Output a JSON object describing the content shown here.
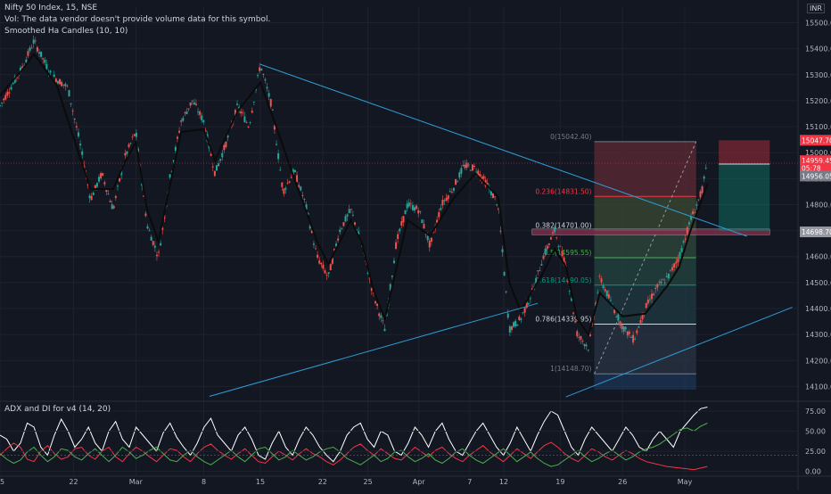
{
  "header": {
    "title": "Nifty 50 Index, 15, NSE",
    "vol_note": "Vol: The data vendor doesn't provide volume data for this symbol.",
    "indicator": "Smoothed Ha Candles (10, 10)",
    "currency": "INR"
  },
  "adx_label": "ADX and DI for v4 (14, 20)",
  "chart_data": [
    {
      "type": "candlestick",
      "title": "Nifty 50 Index, 15, NSE",
      "x_ticks": [
        "15",
        "22",
        "Mar",
        "8",
        "15",
        "22",
        "25",
        "Apr",
        "7",
        "12",
        "19",
        "26",
        "May"
      ],
      "y_ticks": [
        15500,
        15400,
        15300,
        15200,
        15100,
        15000,
        14900,
        14800,
        14700,
        14600,
        14500,
        14400,
        14300,
        14200,
        14100
      ],
      "ylim": [
        14050,
        15560
      ],
      "price_path": [
        [
          0,
          15180
        ],
        [
          4,
          15330
        ],
        [
          6,
          15430
        ],
        [
          9,
          15300
        ],
        [
          12,
          15250
        ],
        [
          14,
          15050
        ],
        [
          16,
          14820
        ],
        [
          18,
          14920
        ],
        [
          20,
          14780
        ],
        [
          22,
          14980
        ],
        [
          24,
          15080
        ],
        [
          26,
          14720
        ],
        [
          28,
          14600
        ],
        [
          30,
          14900
        ],
        [
          32,
          15120
        ],
        [
          34,
          15200
        ],
        [
          36,
          15120
        ],
        [
          38,
          14920
        ],
        [
          40,
          15040
        ],
        [
          42,
          15180
        ],
        [
          44,
          15100
        ],
        [
          46,
          15340
        ],
        [
          48,
          15180
        ],
        [
          50,
          14850
        ],
        [
          52,
          14930
        ],
        [
          54,
          14800
        ],
        [
          56,
          14600
        ],
        [
          58,
          14520
        ],
        [
          60,
          14700
        ],
        [
          62,
          14780
        ],
        [
          64,
          14640
        ],
        [
          66,
          14450
        ],
        [
          68,
          14320
        ],
        [
          70,
          14650
        ],
        [
          72,
          14800
        ],
        [
          74,
          14780
        ],
        [
          76,
          14640
        ],
        [
          78,
          14800
        ],
        [
          80,
          14860
        ],
        [
          82,
          14950
        ],
        [
          84,
          14940
        ],
        [
          86,
          14880
        ],
        [
          88,
          14800
        ],
        [
          89,
          14560
        ],
        [
          90,
          14320
        ],
        [
          92,
          14360
        ],
        [
          94,
          14460
        ],
        [
          96,
          14600
        ],
        [
          98,
          14700
        ],
        [
          100,
          14560
        ],
        [
          102,
          14300
        ],
        [
          104,
          14250
        ],
        [
          106,
          14520
        ],
        [
          108,
          14420
        ],
        [
          110,
          14330
        ],
        [
          112,
          14280
        ],
        [
          114,
          14400
        ],
        [
          116,
          14480
        ],
        [
          118,
          14520
        ],
        [
          120,
          14600
        ],
        [
          122,
          14740
        ],
        [
          124,
          14850
        ],
        [
          125,
          14959.45
        ]
      ],
      "smoothed_ha_line": [
        [
          0,
          15220
        ],
        [
          4,
          15320
        ],
        [
          6,
          15380
        ],
        [
          10,
          15260
        ],
        [
          14,
          14990
        ],
        [
          16,
          14860
        ],
        [
          20,
          14860
        ],
        [
          22,
          14960
        ],
        [
          24,
          15040
        ],
        [
          26,
          14780
        ],
        [
          28,
          14660
        ],
        [
          32,
          15080
        ],
        [
          36,
          15090
        ],
        [
          38,
          14970
        ],
        [
          42,
          15160
        ],
        [
          46,
          15270
        ],
        [
          48,
          15150
        ],
        [
          52,
          14900
        ],
        [
          56,
          14660
        ],
        [
          58,
          14570
        ],
        [
          62,
          14740
        ],
        [
          64,
          14650
        ],
        [
          66,
          14470
        ],
        [
          68,
          14360
        ],
        [
          72,
          14740
        ],
        [
          76,
          14680
        ],
        [
          80,
          14820
        ],
        [
          84,
          14920
        ],
        [
          88,
          14830
        ],
        [
          90,
          14500
        ],
        [
          92,
          14390
        ],
        [
          96,
          14540
        ],
        [
          98,
          14630
        ],
        [
          100,
          14560
        ],
        [
          102,
          14360
        ],
        [
          104,
          14300
        ],
        [
          106,
          14460
        ],
        [
          110,
          14370
        ],
        [
          114,
          14380
        ],
        [
          118,
          14490
        ],
        [
          120,
          14560
        ],
        [
          122,
          14700
        ],
        [
          124,
          14820
        ],
        [
          125,
          14880
        ]
      ],
      "trendlines": [
        {
          "name": "upper-trendline",
          "from": [
            46,
            15340
          ],
          "to": [
            132,
            14678
          ]
        },
        {
          "name": "lower-trendline",
          "from": [
            37,
            14062
          ],
          "to": [
            95,
            14420
          ]
        },
        {
          "name": "right-trendline",
          "from": [
            100,
            14060
          ],
          "to": [
            140,
            14405
          ]
        }
      ],
      "fibonacci": {
        "x_range": [
          105,
          123
        ],
        "levels": [
          {
            "ratio": "0",
            "label": "0(15042.40)",
            "price": 15042.4,
            "color": "#787b86"
          },
          {
            "ratio": "0.236",
            "label": "0.236(14831.50)",
            "price": 14831.5,
            "color": "#f23645"
          },
          {
            "ratio": "0.382",
            "label": "0.382(14701.00)",
            "price": 14701.0,
            "color": "#d1d4dc"
          },
          {
            "ratio": "0.5",
            "label": "0.5(14595.55)",
            "price": 14595.55,
            "color": "#4caf50"
          },
          {
            "ratio": "0.618",
            "label": "0.618(14490.05)",
            "price": 14490.05,
            "color": "#089981"
          },
          {
            "ratio": "0.786",
            "label": "0.786(14339.95)",
            "price": 14339.95,
            "color": "#d1d4dc"
          },
          {
            "ratio": "1",
            "label": "1(14148.70)",
            "price": 14148.7,
            "color": "#787b86"
          }
        ],
        "band_colors": [
          "#5d2a33",
          "#3b4a32",
          "#2f4a3c",
          "#23453f",
          "#1f3a40",
          "#2a3444",
          "#1e3555"
        ],
        "bottom": 14088
      },
      "sr_zone": {
        "x_range": [
          94,
          136
        ],
        "price_range": [
          14684,
          14706
        ],
        "color": "#7a2e4a"
      },
      "position_tool": {
        "x_range": [
          127,
          136
        ],
        "entry": 14956.05,
        "stop": 15047.7,
        "target": 14698.7,
        "stop_color": "#f23645",
        "target_color": "#089981"
      },
      "price_labels": [
        {
          "text": "15047.70",
          "price": 15047.7,
          "color": "#f23645"
        },
        {
          "text": "14959.45",
          "price": 14969,
          "color": "#f23645"
        },
        {
          "text": "05:78",
          "price": 14940,
          "color": "#f23645"
        },
        {
          "text": "14956.05",
          "price": 14910,
          "color": "#787b86"
        },
        {
          "text": "14698.70",
          "price": 14695,
          "color": "#9598a1"
        }
      ],
      "last_price": 14959.45
    },
    {
      "type": "line",
      "title": "ADX and DI for v4 (14, 20)",
      "y_ticks": [
        75.0,
        50.0,
        25.0,
        0.0
      ],
      "ylim": [
        -5,
        85
      ],
      "threshold": 20,
      "series": [
        {
          "name": "",
          "color": "#ffffff",
          "values": [
            45,
            40,
            25,
            35,
            60,
            55,
            30,
            20,
            45,
            65,
            50,
            30,
            40,
            55,
            35,
            25,
            50,
            62,
            40,
            30,
            55,
            45,
            35,
            25,
            48,
            60,
            42,
            30,
            20,
            35,
            55,
            66,
            45,
            35,
            25,
            45,
            55,
            40,
            20,
            15,
            35,
            50,
            30,
            20,
            40,
            55,
            45,
            30,
            20,
            12,
            25,
            45,
            55,
            60,
            40,
            30,
            50,
            45,
            25,
            20,
            35,
            55,
            45,
            30,
            50,
            60,
            40,
            25,
            20,
            35,
            50,
            60,
            45,
            30,
            20,
            35,
            55,
            40,
            25,
            45,
            62,
            75,
            70,
            50,
            30,
            20,
            40,
            55,
            45,
            35,
            25,
            40,
            55,
            45,
            30,
            25,
            40,
            50,
            40,
            30,
            50,
            60,
            70,
            78,
            80
          ]
        },
        {
          "name": "",
          "color": "#f23645",
          "values": [
            20,
            28,
            35,
            30,
            15,
            12,
            25,
            32,
            22,
            15,
            18,
            28,
            30,
            20,
            15,
            25,
            30,
            18,
            12,
            22,
            30,
            25,
            18,
            12,
            20,
            28,
            26,
            18,
            12,
            22,
            30,
            34,
            26,
            20,
            15,
            22,
            28,
            20,
            12,
            10,
            18,
            25,
            20,
            14,
            22,
            28,
            22,
            18,
            12,
            8,
            14,
            22,
            30,
            34,
            26,
            20,
            28,
            22,
            16,
            14,
            22,
            30,
            24,
            18,
            26,
            30,
            22,
            16,
            12,
            20,
            26,
            32,
            24,
            18,
            12,
            20,
            28,
            22,
            16,
            24,
            32,
            36,
            30,
            22,
            16,
            12,
            20,
            28,
            24,
            18,
            14,
            20,
            26,
            22,
            16,
            12,
            10,
            8,
            6,
            5,
            4,
            3,
            2,
            4,
            6
          ]
        },
        {
          "name": "",
          "color": "#4caf50",
          "values": [
            22,
            15,
            10,
            14,
            24,
            30,
            20,
            12,
            18,
            28,
            26,
            18,
            14,
            22,
            28,
            20,
            12,
            20,
            30,
            24,
            16,
            20,
            26,
            30,
            22,
            14,
            12,
            20,
            26,
            18,
            12,
            8,
            14,
            20,
            26,
            18,
            12,
            20,
            28,
            30,
            22,
            14,
            18,
            26,
            20,
            14,
            18,
            24,
            28,
            30,
            24,
            16,
            12,
            8,
            14,
            20,
            12,
            16,
            24,
            26,
            18,
            12,
            16,
            22,
            14,
            10,
            16,
            24,
            28,
            20,
            14,
            10,
            16,
            22,
            28,
            20,
            12,
            18,
            24,
            16,
            10,
            6,
            8,
            14,
            20,
            26,
            18,
            12,
            16,
            22,
            26,
            20,
            14,
            18,
            24,
            28,
            30,
            34,
            40,
            46,
            52,
            54,
            50,
            56,
            60
          ]
        }
      ]
    }
  ],
  "x_axis_labels": [
    "15",
    "22",
    "Mar",
    "8",
    "15",
    "22",
    "25",
    "Apr",
    "7",
    "12",
    "19",
    "26",
    "May"
  ]
}
